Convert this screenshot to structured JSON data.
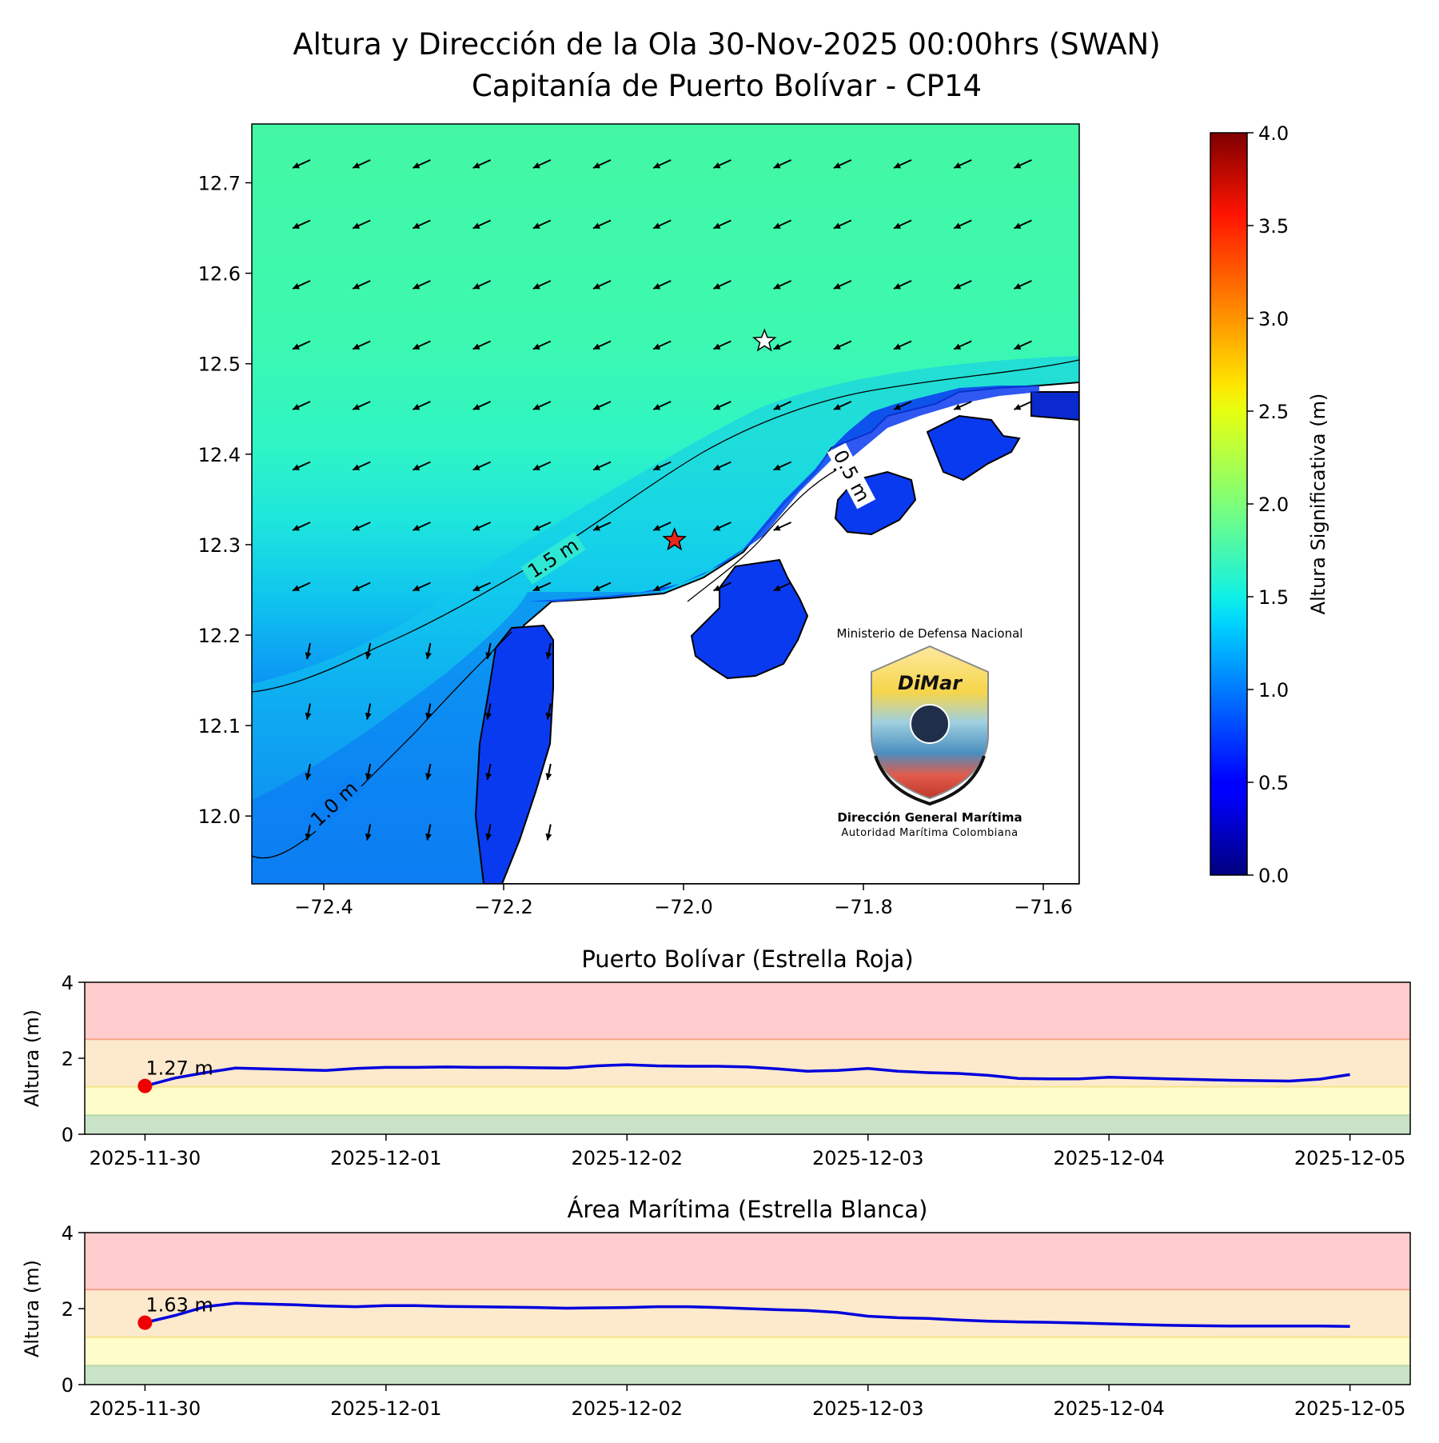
{
  "title": {
    "line1": "Altura y Dirección de la Ola 30-Nov-2025 00:00hrs (SWAN)",
    "line2": "Capitanía de Puerto Bolívar - CP14"
  },
  "logo": {
    "ministry": "Ministerio de Defensa Nacional",
    "brand": "DiMar",
    "org": "Dirección General Marítima",
    "org_sub": "Autoridad Marítima Colombiana"
  },
  "chart_data": [
    {
      "type": "heatmap",
      "subtype": "wave-height-map",
      "xlim": [
        -72.48,
        -71.56
      ],
      "ylim": [
        11.925,
        12.765
      ],
      "x_ticks": [
        -72.4,
        -72.2,
        -72.0,
        -71.8,
        -71.6
      ],
      "x_tick_labels": [
        "−72.4",
        "−72.2",
        "−72.0",
        "−71.8",
        "−71.6"
      ],
      "y_ticks": [
        12.0,
        12.1,
        12.2,
        12.3,
        12.4,
        12.5,
        12.6,
        12.7
      ],
      "y_tick_labels": [
        "12.0",
        "12.1",
        "12.2",
        "12.3",
        "12.4",
        "12.5",
        "12.6",
        "12.7"
      ],
      "contour_labels": [
        "1.5 m",
        "1.0 m",
        "0.5 m"
      ],
      "wave_direction": "from NE (arrows toward SW)",
      "markers": [
        {
          "name": "Puerto Bolívar",
          "symbol": "star",
          "color": "#e8261c",
          "lon": -72.01,
          "lat": 12.305
        },
        {
          "name": "Área Marítima",
          "symbol": "star",
          "color": "#ffffff",
          "lon": -71.91,
          "lat": 12.525
        }
      ],
      "colorbar": {
        "label": "Altura Significativa (m)",
        "range": [
          0.0,
          4.0
        ],
        "ticks": [
          "0.0",
          "0.5",
          "1.0",
          "1.5",
          "2.0",
          "2.5",
          "3.0",
          "3.5",
          "4.0"
        ],
        "colormap": "jet"
      }
    },
    {
      "type": "line",
      "title": "Puerto Bolívar (Estrella Roja)",
      "ylabel": "Altura (m)",
      "ylim": [
        0,
        4
      ],
      "y_ticks": [
        "0",
        "2",
        "4"
      ],
      "xlim": [
        "2025-11-29T18:00",
        "2025-12-05T06:00"
      ],
      "x_tick_labels": [
        "2025-11-30",
        "2025-12-01",
        "2025-12-02",
        "2025-12-03",
        "2025-12-04",
        "2025-12-05"
      ],
      "bands": [
        {
          "from": 0,
          "to": 0.5,
          "color": "#c9e3c9"
        },
        {
          "from": 0.5,
          "to": 1.25,
          "color": "#fefcc9"
        },
        {
          "from": 1.25,
          "to": 2.5,
          "color": "#fde9cc"
        },
        {
          "from": 2.5,
          "to": 4,
          "color": "#fecccc"
        }
      ],
      "current_label": "1.27 m",
      "series": [
        {
          "color": "#0000dd",
          "x": [
            "2025-11-30T00:00",
            "2025-11-30T03:00",
            "2025-11-30T06:00",
            "2025-11-30T09:00",
            "2025-11-30T12:00",
            "2025-11-30T15:00",
            "2025-11-30T18:00",
            "2025-11-30T21:00",
            "2025-12-01T00:00",
            "2025-12-01T03:00",
            "2025-12-01T06:00",
            "2025-12-01T09:00",
            "2025-12-01T12:00",
            "2025-12-01T15:00",
            "2025-12-01T18:00",
            "2025-12-01T21:00",
            "2025-12-02T00:00",
            "2025-12-02T03:00",
            "2025-12-02T06:00",
            "2025-12-02T09:00",
            "2025-12-02T12:00",
            "2025-12-02T15:00",
            "2025-12-02T18:00",
            "2025-12-02T21:00",
            "2025-12-03T00:00",
            "2025-12-03T03:00",
            "2025-12-03T06:00",
            "2025-12-03T09:00",
            "2025-12-03T12:00",
            "2025-12-03T15:00",
            "2025-12-03T18:00",
            "2025-12-03T21:00",
            "2025-12-04T00:00",
            "2025-12-04T03:00",
            "2025-12-04T06:00",
            "2025-12-04T09:00",
            "2025-12-04T12:00",
            "2025-12-04T15:00",
            "2025-12-04T18:00",
            "2025-12-04T21:00",
            "2025-12-05T00:00"
          ],
          "values": [
            1.27,
            1.48,
            1.62,
            1.74,
            1.72,
            1.7,
            1.68,
            1.73,
            1.76,
            1.76,
            1.77,
            1.76,
            1.76,
            1.75,
            1.74,
            1.8,
            1.83,
            1.8,
            1.79,
            1.79,
            1.77,
            1.72,
            1.66,
            1.68,
            1.73,
            1.66,
            1.62,
            1.6,
            1.55,
            1.47,
            1.46,
            1.46,
            1.5,
            1.48,
            1.46,
            1.44,
            1.42,
            1.41,
            1.4,
            1.45,
            1.57
          ]
        }
      ]
    },
    {
      "type": "line",
      "title": "Área Marítima (Estrella Blanca)",
      "ylabel": "Altura (m)",
      "ylim": [
        0,
        4
      ],
      "y_ticks": [
        "0",
        "2",
        "4"
      ],
      "xlim": [
        "2025-11-29T18:00",
        "2025-12-05T06:00"
      ],
      "x_tick_labels": [
        "2025-11-30",
        "2025-12-01",
        "2025-12-02",
        "2025-12-03",
        "2025-12-04",
        "2025-12-05"
      ],
      "bands": [
        {
          "from": 0,
          "to": 0.5,
          "color": "#c9e3c9"
        },
        {
          "from": 0.5,
          "to": 1.25,
          "color": "#fefcc9"
        },
        {
          "from": 1.25,
          "to": 2.5,
          "color": "#fde9cc"
        },
        {
          "from": 2.5,
          "to": 4,
          "color": "#fecccc"
        }
      ],
      "current_label": "1.63 m",
      "series": [
        {
          "color": "#0000dd",
          "x": [
            "2025-11-30T00:00",
            "2025-11-30T03:00",
            "2025-11-30T06:00",
            "2025-11-30T09:00",
            "2025-11-30T12:00",
            "2025-11-30T15:00",
            "2025-11-30T18:00",
            "2025-11-30T21:00",
            "2025-12-01T00:00",
            "2025-12-01T03:00",
            "2025-12-01T06:00",
            "2025-12-01T09:00",
            "2025-12-01T12:00",
            "2025-12-01T15:00",
            "2025-12-01T18:00",
            "2025-12-01T21:00",
            "2025-12-02T00:00",
            "2025-12-02T03:00",
            "2025-12-02T06:00",
            "2025-12-02T09:00",
            "2025-12-02T12:00",
            "2025-12-02T15:00",
            "2025-12-02T18:00",
            "2025-12-02T21:00",
            "2025-12-03T00:00",
            "2025-12-03T03:00",
            "2025-12-03T06:00",
            "2025-12-03T09:00",
            "2025-12-03T12:00",
            "2025-12-03T15:00",
            "2025-12-03T18:00",
            "2025-12-03T21:00",
            "2025-12-04T00:00",
            "2025-12-04T03:00",
            "2025-12-04T06:00",
            "2025-12-04T09:00",
            "2025-12-04T12:00",
            "2025-12-04T15:00",
            "2025-12-04T18:00",
            "2025-12-04T21:00",
            "2025-12-05T00:00"
          ],
          "values": [
            1.63,
            1.82,
            2.05,
            2.14,
            2.12,
            2.1,
            2.07,
            2.05,
            2.08,
            2.08,
            2.06,
            2.05,
            2.04,
            2.03,
            2.01,
            2.02,
            2.03,
            2.05,
            2.05,
            2.03,
            2.0,
            1.97,
            1.95,
            1.9,
            1.8,
            1.76,
            1.74,
            1.7,
            1.67,
            1.65,
            1.64,
            1.62,
            1.6,
            1.58,
            1.56,
            1.55,
            1.54,
            1.54,
            1.54,
            1.54,
            1.53
          ]
        }
      ]
    }
  ]
}
